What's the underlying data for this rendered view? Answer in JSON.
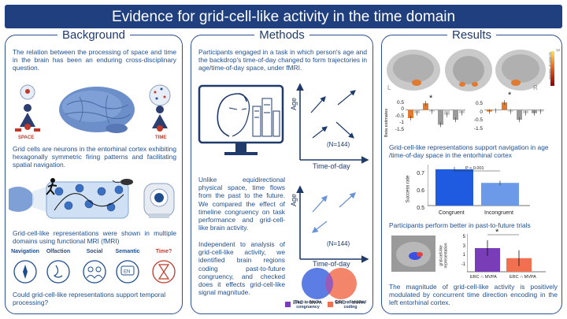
{
  "title": "Evidence for grid-cell-like activity in the time domain",
  "background": {
    "header": "Background",
    "para1": "The relation between the processing of space and time in the brain has been an enduring cross-disciplinary question.",
    "space_label": "SPACE",
    "time_label": "TIME",
    "para2": "Grid cells are neurons in the entorhinal cortex exhibiting hexagonally symmetric firing patterns and facilitating spatial navigation.",
    "para3": "Grid-cell-like representations were shown in multiple domains using functional MRI (fMRI)",
    "domains": [
      {
        "label": "Navigation",
        "icon": "compass-icon"
      },
      {
        "label": "Olfaction",
        "icon": "nose-icon"
      },
      {
        "label": "Social",
        "icon": "social-icon"
      },
      {
        "label": "Semantic",
        "icon": "speech-icon"
      },
      {
        "label": "Time?",
        "icon": "hourglass-icon",
        "color": "#c0392b"
      }
    ],
    "question": "Could grid-cell-like representations support temporal processing?"
  },
  "methods": {
    "header": "Methods",
    "para1": "Participants engaged in a task in which person's age and the backdrop's time-of-day changed to form trajectories in age/time-of-day space, under fMRI.",
    "axis_y": "Age",
    "axis_x": "Time-of-day",
    "n1": "(N=144)",
    "n2": "(N=144)",
    "para2": "Unlike equidirectional physical space, time flows from the past to the future. We compared the effect of timeline congruency on task performance and grid-cell-like brain activity.",
    "para3": "Independent to analysis of grid-cell-like activity, we identified brain regions coding past-to-future congruency, and checked does it effects grid-cell-like signal magnitude.",
    "venn_left": "Past-to-future congruency",
    "venn_right": "Grid-cell-related coding"
  },
  "results": {
    "header": "Results",
    "brain_left": "L",
    "brain_right": "R",
    "colorbar_top": "12",
    "colorbar_label": "Number of subjects",
    "beta_ylabel": "Beta estimates",
    "beta_ticks": [
      "0.5",
      "0",
      "-0.5",
      "-1",
      "-1.5"
    ],
    "beta_ticks_right": [
      "0.5",
      "0",
      "-0.5",
      "-1.5"
    ],
    "star": "*",
    "text1": "Grid-cell-like representations support navigation in age /time-of-day space in the entorhinal cortex",
    "success_ylabel": "Success rate",
    "success_ticks": [
      "0.7",
      "0.6",
      "0.5"
    ],
    "pvalue": "P < 0.001",
    "text2": "Participants perform better in past-to-future trials",
    "grid_ylabel": "grid-cell-like representation",
    "grid_ticks": [
      "5",
      "3",
      "1",
      "-1"
    ],
    "legend1": "ERC ∩ MVPA",
    "legend2": "ERC ∩ MVPA",
    "text3": "The magnitude of grid-cell-like activity is positively modulated by concurrent time direction encoding in the left entorhinal cortex."
  },
  "chart_data": [
    {
      "type": "bar",
      "title": "",
      "ylabel": "Beta estimates",
      "ylim": [
        -1.5,
        0.5
      ],
      "categories": [
        "1",
        "2",
        "3",
        "4"
      ],
      "series": [
        {
          "values": [
            -0.5,
            0.4,
            -0.9,
            -0.6
          ]
        },
        {
          "values": [
            -0.2,
            -0.1,
            -0.3,
            -0.2
          ]
        }
      ]
    },
    {
      "type": "bar",
      "title": "",
      "ylabel": "Success rate",
      "ylim": [
        0.5,
        0.75
      ],
      "categories": [
        "Congruent",
        "Incongruent"
      ],
      "values": [
        0.74,
        0.65
      ]
    },
    {
      "type": "bar",
      "title": "",
      "ylabel": "grid-cell-like representation",
      "ylim": [
        -1,
        5
      ],
      "categories": [
        "ERC ∩ MVPA",
        "ERC ∩ MVPA"
      ],
      "values": [
        3.0,
        1.3
      ]
    }
  ]
}
